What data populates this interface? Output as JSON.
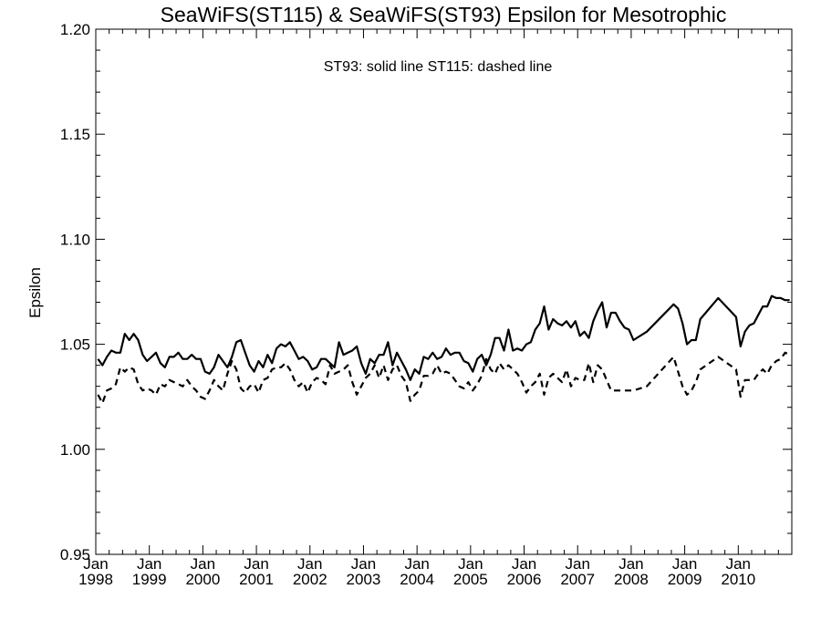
{
  "chart_data": {
    "type": "line",
    "title": "SeaWiFS(ST115) & SeaWiFS(ST93)  Epsilon for Mesotrophic",
    "xlabel": "",
    "ylabel": "Epsilon",
    "annotation": "ST93: solid line   ST115: dashed line",
    "ylim": [
      0.95,
      1.2
    ],
    "xlim": [
      "1998-01",
      "2010-12"
    ],
    "yticks": [
      "0.95",
      "1.00",
      "1.05",
      "1.10",
      "1.15",
      "1.20"
    ],
    "xtick_month_label": "Jan",
    "xtick_year_labels": [
      "1998",
      "1999",
      "2000",
      "2001",
      "2002",
      "2003",
      "2004",
      "2005",
      "2006",
      "2007",
      "2008",
      "2009",
      "2010"
    ],
    "grid": false,
    "series": [
      {
        "name": "ST93",
        "style": "solid",
        "color": "#000000",
        "x": [
          "1998-01",
          "1998-02",
          "1998-03",
          "1998-04",
          "1998-05",
          "1998-06",
          "1998-07",
          "1998-08",
          "1998-09",
          "1998-10",
          "1998-11",
          "1998-12",
          "1999-01",
          "1999-02",
          "1999-03",
          "1999-04",
          "1999-05",
          "1999-06",
          "1999-07",
          "1999-08",
          "1999-09",
          "1999-10",
          "1999-11",
          "1999-12",
          "2000-01",
          "2000-02",
          "2000-03",
          "2000-04",
          "2000-05",
          "2000-06",
          "2000-07",
          "2000-08",
          "2000-09",
          "2000-10",
          "2000-11",
          "2000-12",
          "2001-01",
          "2001-02",
          "2001-03",
          "2001-04",
          "2001-05",
          "2001-06",
          "2001-07",
          "2001-08",
          "2001-09",
          "2001-10",
          "2001-11",
          "2001-12",
          "2002-01",
          "2002-02",
          "2002-03",
          "2002-04",
          "2002-05",
          "2002-06",
          "2002-07",
          "2002-08",
          "2002-09",
          "2002-10",
          "2002-11",
          "2002-12",
          "2003-01",
          "2003-02",
          "2003-03",
          "2003-04",
          "2003-05",
          "2003-06",
          "2003-07",
          "2003-08",
          "2003-09",
          "2003-10",
          "2003-11",
          "2003-12",
          "2004-01",
          "2004-02",
          "2004-03",
          "2004-04",
          "2004-05",
          "2004-06",
          "2004-07",
          "2004-08",
          "2004-09",
          "2004-10",
          "2004-11",
          "2004-12",
          "2005-01",
          "2005-02",
          "2005-03",
          "2005-04",
          "2005-05",
          "2005-06",
          "2005-07",
          "2005-08",
          "2005-09",
          "2005-10",
          "2005-11",
          "2005-12",
          "2006-01",
          "2006-02",
          "2006-03",
          "2006-04",
          "2006-05",
          "2006-06",
          "2006-07",
          "2006-08",
          "2006-09",
          "2006-10",
          "2006-11",
          "2006-12",
          "2007-01",
          "2007-02",
          "2007-03",
          "2007-04",
          "2007-05",
          "2007-06",
          "2007-07",
          "2007-08",
          "2007-09",
          "2007-10",
          "2007-11",
          "2007-12",
          "2008-01",
          "2008-04",
          "2008-10",
          "2008-11",
          "2008-12",
          "2009-01",
          "2009-02",
          "2009-03",
          "2009-04",
          "2009-08",
          "2009-12",
          "2010-01",
          "2010-02",
          "2010-03",
          "2010-04",
          "2010-05",
          "2010-06",
          "2010-07",
          "2010-08",
          "2010-09",
          "2010-10",
          "2010-11",
          "2010-12"
        ],
        "values": [
          1.043,
          1.04,
          1.044,
          1.047,
          1.046,
          1.046,
          1.055,
          1.052,
          1.055,
          1.052,
          1.045,
          1.042,
          1.044,
          1.046,
          1.041,
          1.039,
          1.044,
          1.044,
          1.046,
          1.043,
          1.043,
          1.045,
          1.043,
          1.043,
          1.037,
          1.036,
          1.039,
          1.045,
          1.042,
          1.039,
          1.044,
          1.051,
          1.052,
          1.046,
          1.04,
          1.037,
          1.042,
          1.039,
          1.045,
          1.041,
          1.048,
          1.05,
          1.049,
          1.051,
          1.047,
          1.043,
          1.044,
          1.042,
          1.038,
          1.039,
          1.043,
          1.043,
          1.041,
          1.039,
          1.051,
          1.045,
          1.046,
          1.047,
          1.049,
          1.041,
          1.036,
          1.043,
          1.041,
          1.045,
          1.045,
          1.051,
          1.04,
          1.046,
          1.042,
          1.038,
          1.033,
          1.038,
          1.036,
          1.044,
          1.043,
          1.046,
          1.043,
          1.044,
          1.048,
          1.045,
          1.046,
          1.046,
          1.042,
          1.041,
          1.037,
          1.043,
          1.045,
          1.04,
          1.045,
          1.053,
          1.053,
          1.047,
          1.057,
          1.047,
          1.048,
          1.047,
          1.05,
          1.051,
          1.057,
          1.06,
          1.068,
          1.057,
          1.062,
          1.06,
          1.059,
          1.061,
          1.058,
          1.061,
          1.054,
          1.056,
          1.053,
          1.061,
          1.066,
          1.07,
          1.058,
          1.065,
          1.065,
          1.061,
          1.058,
          1.057,
          1.052,
          1.056,
          1.069,
          1.067,
          1.06,
          1.05,
          1.052,
          1.052,
          1.062,
          1.072,
          1.063,
          1.049,
          1.056,
          1.059,
          1.06,
          1.064,
          1.068,
          1.068,
          1.073,
          1.072,
          1.072,
          1.071,
          1.071
        ]
      },
      {
        "name": "ST115",
        "style": "dashed",
        "color": "#000000",
        "x": [
          "1998-01",
          "1998-02",
          "1998-03",
          "1998-04",
          "1998-05",
          "1998-06",
          "1998-07",
          "1998-08",
          "1998-09",
          "1998-10",
          "1998-11",
          "1998-12",
          "1999-01",
          "1999-02",
          "1999-03",
          "1999-04",
          "1999-05",
          "1999-06",
          "1999-07",
          "1999-08",
          "1999-09",
          "1999-10",
          "1999-11",
          "1999-12",
          "2000-01",
          "2000-02",
          "2000-03",
          "2000-04",
          "2000-05",
          "2000-06",
          "2000-07",
          "2000-08",
          "2000-09",
          "2000-10",
          "2000-11",
          "2000-12",
          "2001-01",
          "2001-02",
          "2001-03",
          "2001-04",
          "2001-05",
          "2001-06",
          "2001-07",
          "2001-08",
          "2001-09",
          "2001-10",
          "2001-11",
          "2001-12",
          "2002-01",
          "2002-02",
          "2002-03",
          "2002-04",
          "2002-05",
          "2002-06",
          "2002-07",
          "2002-08",
          "2002-09",
          "2002-10",
          "2002-11",
          "2002-12",
          "2003-01",
          "2003-02",
          "2003-03",
          "2003-04",
          "2003-05",
          "2003-06",
          "2003-07",
          "2003-08",
          "2003-09",
          "2003-10",
          "2003-11",
          "2003-12",
          "2004-01",
          "2004-02",
          "2004-03",
          "2004-04",
          "2004-05",
          "2004-06",
          "2004-07",
          "2004-08",
          "2004-09",
          "2004-10",
          "2004-11",
          "2004-12",
          "2005-01",
          "2005-02",
          "2005-03",
          "2005-04",
          "2005-05",
          "2005-06",
          "2005-07",
          "2005-08",
          "2005-09",
          "2005-10",
          "2005-11",
          "2005-12",
          "2006-01",
          "2006-02",
          "2006-03",
          "2006-04",
          "2006-05",
          "2006-06",
          "2006-07",
          "2006-08",
          "2006-09",
          "2006-10",
          "2006-11",
          "2006-12",
          "2007-01",
          "2007-02",
          "2007-03",
          "2007-04",
          "2007-05",
          "2007-06",
          "2007-07",
          "2007-08",
          "2007-09",
          "2007-10",
          "2007-11",
          "2007-12",
          "2008-01",
          "2008-04",
          "2008-10",
          "2008-11",
          "2008-12",
          "2009-01",
          "2009-02",
          "2009-03",
          "2009-04",
          "2009-08",
          "2009-12",
          "2010-01",
          "2010-02",
          "2010-03",
          "2010-04",
          "2010-05",
          "2010-06",
          "2010-07",
          "2010-08",
          "2010-09",
          "2010-10",
          "2010-11",
          "2010-12"
        ],
        "values": [
          1.026,
          1.022,
          1.028,
          1.029,
          1.031,
          1.039,
          1.037,
          1.039,
          1.038,
          1.031,
          1.028,
          1.029,
          1.028,
          1.026,
          1.031,
          1.03,
          1.033,
          1.032,
          1.031,
          1.03,
          1.033,
          1.03,
          1.028,
          1.025,
          1.024,
          1.028,
          1.033,
          1.03,
          1.028,
          1.036,
          1.042,
          1.038,
          1.029,
          1.027,
          1.03,
          1.031,
          1.027,
          1.033,
          1.034,
          1.038,
          1.039,
          1.039,
          1.041,
          1.038,
          1.033,
          1.03,
          1.032,
          1.027,
          1.032,
          1.034,
          1.033,
          1.031,
          1.04,
          1.036,
          1.037,
          1.038,
          1.04,
          1.032,
          1.026,
          1.03,
          1.034,
          1.036,
          1.04,
          1.034,
          1.04,
          1.033,
          1.038,
          1.04,
          1.035,
          1.032,
          1.023,
          1.026,
          1.028,
          1.035,
          1.035,
          1.036,
          1.04,
          1.036,
          1.037,
          1.036,
          1.033,
          1.03,
          1.029,
          1.032,
          1.028,
          1.031,
          1.035,
          1.043,
          1.038,
          1.036,
          1.041,
          1.038,
          1.04,
          1.038,
          1.036,
          1.032,
          1.027,
          1.03,
          1.032,
          1.036,
          1.026,
          1.034,
          1.036,
          1.034,
          1.032,
          1.038,
          1.03,
          1.034,
          1.033,
          1.033,
          1.041,
          1.032,
          1.04,
          1.038,
          1.033,
          1.028,
          1.028,
          1.028,
          1.028,
          1.028,
          1.028,
          1.03,
          1.044,
          1.037,
          1.03,
          1.026,
          1.028,
          1.032,
          1.038,
          1.044,
          1.038,
          1.025,
          1.033,
          1.033,
          1.033,
          1.036,
          1.038,
          1.036,
          1.04,
          1.042,
          1.043,
          1.046,
          1.045
        ]
      }
    ]
  }
}
